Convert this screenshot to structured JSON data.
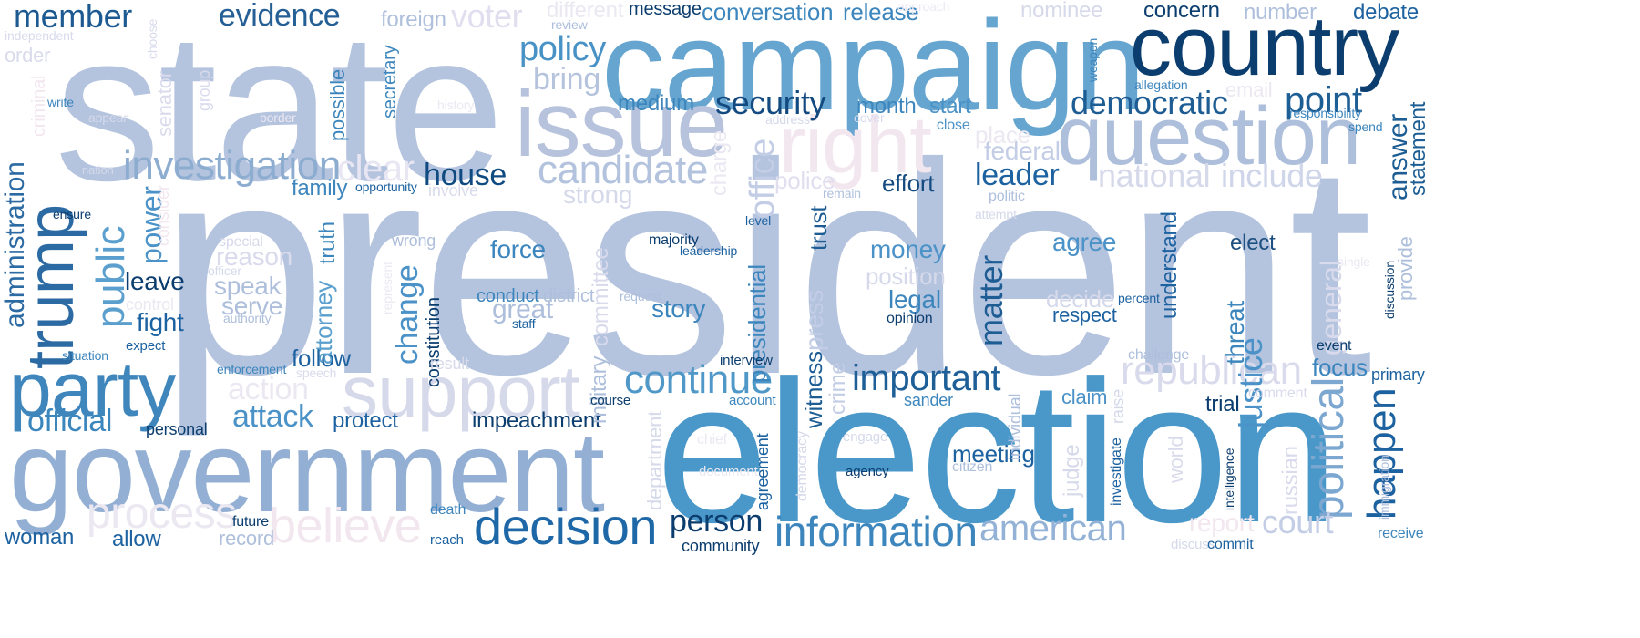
{
  "palette": {
    "light_blue": "#b4c3de",
    "mid_blue": "#5aa0cf",
    "bright_blue": "#3182bd",
    "dark_blue": "#1d5d92",
    "navy": "#08306b",
    "pale_lavender": "#d9d9ea",
    "pale_pink": "#f3e6ef",
    "background": "#ffffff"
  },
  "words": [
    {
      "text": "president",
      "color": "#b4c3de"
    },
    {
      "text": "election",
      "color": "#4a98c9"
    },
    {
      "text": "state",
      "color": "#b4c3de"
    },
    {
      "text": "campaign",
      "color": "#65a5d0"
    },
    {
      "text": "government",
      "color": "#93b0d4"
    },
    {
      "text": "country",
      "color": "#0b3d6e"
    },
    {
      "text": "question",
      "color": "#aebfdc"
    },
    {
      "text": "issue",
      "color": "#b7c3dd"
    },
    {
      "text": "support",
      "color": "#d6d9ea"
    },
    {
      "text": "party",
      "color": "#3f86bc"
    },
    {
      "text": "trump",
      "color": "#2c6aa3"
    },
    {
      "text": "right",
      "color": "#f2e6ef"
    },
    {
      "text": "decision",
      "color": "#1e68a8"
    },
    {
      "text": "information",
      "color": "#3c86bd"
    },
    {
      "text": "continue",
      "color": "#4f98c8"
    },
    {
      "text": "important",
      "color": "#1f5f98"
    },
    {
      "text": "investigation",
      "color": "#8cacd0"
    },
    {
      "text": "candidate",
      "color": "#b3c3de"
    },
    {
      "text": "republican",
      "color": "#d9dbec"
    },
    {
      "text": "american",
      "color": "#93b2d6"
    },
    {
      "text": "member",
      "color": "#1c5a91"
    },
    {
      "text": "evidence",
      "color": "#245f96"
    },
    {
      "text": "policy",
      "color": "#4992c6"
    },
    {
      "text": "security",
      "color": "#134a80"
    },
    {
      "text": "democratic",
      "color": "#1d5d94"
    },
    {
      "text": "point",
      "color": "#1d5e95"
    },
    {
      "text": "house",
      "color": "#0f4a80"
    },
    {
      "text": "official",
      "color": "#3a86bd"
    },
    {
      "text": "public",
      "color": "#5a9fcd"
    },
    {
      "text": "administration",
      "color": "#2c6aa3"
    },
    {
      "text": "political",
      "color": "#7ca7d0"
    },
    {
      "text": "happen",
      "color": "#1d62a0"
    },
    {
      "text": "justice",
      "color": "#4a92c7"
    },
    {
      "text": "answer",
      "color": "#1c5d93"
    },
    {
      "text": "statement",
      "color": "#1c5d93"
    },
    {
      "text": "believe",
      "color": "#f2e6ef"
    },
    {
      "text": "process",
      "color": "#ebe8f2"
    },
    {
      "text": "court",
      "color": "#c3cde6"
    },
    {
      "text": "person",
      "color": "#0b3d6e"
    },
    {
      "text": "national",
      "color": "#d5d9ea"
    },
    {
      "text": "include",
      "color": "#cfd6ea"
    },
    {
      "text": "leader",
      "color": "#1d62a0"
    },
    {
      "text": "bring",
      "color": "#b5c3dd"
    },
    {
      "text": "clear",
      "color": "#e8e6f2"
    },
    {
      "text": "voter",
      "color": "#e1dfef"
    },
    {
      "text": "attack",
      "color": "#4a92c7"
    },
    {
      "text": "matter",
      "color": "#1d5d94"
    },
    {
      "text": "office",
      "color": "#c3cde6"
    },
    {
      "text": "meeting",
      "color": "#1d62a0"
    },
    {
      "text": "money",
      "color": "#4a92c7"
    },
    {
      "text": "legal",
      "color": "#3c86bd"
    },
    {
      "text": "force",
      "color": "#3c86bd"
    },
    {
      "text": "story",
      "color": "#3c86bd"
    },
    {
      "text": "agree",
      "color": "#4a92c7"
    },
    {
      "text": "elect",
      "color": "#1d4f80"
    },
    {
      "text": "change",
      "color": "#4a92c7"
    },
    {
      "text": "protect",
      "color": "#1d62a0"
    },
    {
      "text": "impeachment",
      "color": "#0b3d6e"
    },
    {
      "text": "follow",
      "color": "#1d62a0"
    },
    {
      "text": "fight",
      "color": "#1d62a0"
    },
    {
      "text": "leave",
      "color": "#0b3d6e"
    },
    {
      "text": "speak",
      "color": "#aebfdc"
    },
    {
      "text": "serve",
      "color": "#aebfdc"
    },
    {
      "text": "reason",
      "color": "#d9dbec"
    },
    {
      "text": "power",
      "color": "#4a92c7"
    },
    {
      "text": "attorney",
      "color": "#5a9fcd"
    },
    {
      "text": "truth",
      "color": "#3c86bd"
    },
    {
      "text": "presidential",
      "color": "#3c86bd"
    },
    {
      "text": "witness",
      "color": "#1d5d94"
    },
    {
      "text": "trust",
      "color": "#1d5d94"
    },
    {
      "text": "press",
      "color": "#c3cde6"
    },
    {
      "text": "crime",
      "color": "#c3cde6"
    },
    {
      "text": "position",
      "color": "#d5d9ea"
    },
    {
      "text": "decide",
      "color": "#d5d9ea"
    },
    {
      "text": "understand",
      "color": "#1d62a0"
    },
    {
      "text": "threat",
      "color": "#3c86bd"
    },
    {
      "text": "general",
      "color": "#d9dbec"
    },
    {
      "text": "focus",
      "color": "#3c86bd"
    },
    {
      "text": "trial",
      "color": "#0b3d6e"
    },
    {
      "text": "claim",
      "color": "#4a92c7"
    },
    {
      "text": "respect",
      "color": "#1d62a0"
    },
    {
      "text": "effort",
      "color": "#134a80"
    },
    {
      "text": "federal",
      "color": "#c3cde6"
    },
    {
      "text": "police",
      "color": "#e1dfef"
    },
    {
      "text": "place",
      "color": "#ebe8f2"
    },
    {
      "text": "strong",
      "color": "#d5d9ea"
    },
    {
      "text": "family",
      "color": "#3c86bd"
    },
    {
      "text": "great",
      "color": "#aebfdc"
    },
    {
      "text": "conduct",
      "color": "#3c86bd"
    },
    {
      "text": "district",
      "color": "#aebfdc"
    },
    {
      "text": "committee",
      "color": "#d9dbec"
    },
    {
      "text": "military",
      "color": "#aebfdc"
    },
    {
      "text": "constitution",
      "color": "#0b3d6e"
    },
    {
      "text": "action",
      "color": "#ebe8f2"
    },
    {
      "text": "release",
      "color": "#3c86bd"
    },
    {
      "text": "conversation",
      "color": "#3c86bd"
    },
    {
      "text": "concern",
      "color": "#0b3d6e"
    },
    {
      "text": "number",
      "color": "#aebfdc"
    },
    {
      "text": "debate",
      "color": "#1d62a0"
    },
    {
      "text": "nominee",
      "color": "#d5d9ea"
    },
    {
      "text": "different",
      "color": "#ebe8f2"
    },
    {
      "text": "foreign",
      "color": "#aebfdc"
    },
    {
      "text": "message",
      "color": "#0b3d6e"
    },
    {
      "text": "month",
      "color": "#3c86bd"
    },
    {
      "text": "start",
      "color": "#4a92c7"
    },
    {
      "text": "medium",
      "color": "#3c86bd"
    },
    {
      "text": "close",
      "color": "#4a92c7"
    },
    {
      "text": "order",
      "color": "#d9dbec"
    },
    {
      "text": "independent",
      "color": "#d9dbec"
    },
    {
      "text": "possible",
      "color": "#3c86bd"
    },
    {
      "text": "secretary",
      "color": "#3c86bd"
    },
    {
      "text": "senator",
      "color": "#d9dbec"
    },
    {
      "text": "group",
      "color": "#d9dbec"
    },
    {
      "text": "write",
      "color": "#3c86bd"
    },
    {
      "text": "appear",
      "color": "#d5d9ea"
    },
    {
      "text": "criminal",
      "color": "#f2e6ef"
    },
    {
      "text": "choose",
      "color": "#d9dbec"
    },
    {
      "text": "nation",
      "color": "#d5d9ea"
    },
    {
      "text": "ensure",
      "color": "#0b3d6e"
    },
    {
      "text": "consider",
      "color": "#f2e6ef"
    },
    {
      "text": "special",
      "color": "#d5d9ea"
    },
    {
      "text": "officer",
      "color": "#d5d9ea"
    },
    {
      "text": "authority",
      "color": "#aebfdc"
    },
    {
      "text": "control",
      "color": "#ebe8f2"
    },
    {
      "text": "situation",
      "color": "#3c86bd"
    },
    {
      "text": "expect",
      "color": "#1d62a0"
    },
    {
      "text": "enforcement",
      "color": "#3c86bd"
    },
    {
      "text": "speech",
      "color": "#d9dbec"
    },
    {
      "text": "personal",
      "color": "#0b3d6e"
    },
    {
      "text": "opportunity",
      "color": "#1d62a0"
    },
    {
      "text": "involve",
      "color": "#d9dbec"
    },
    {
      "text": "wrong",
      "color": "#aebfdc"
    },
    {
      "text": "majority",
      "color": "#0b3d6e"
    },
    {
      "text": "leadership",
      "color": "#1d62a0"
    },
    {
      "text": "level",
      "color": "#1d62a0"
    },
    {
      "text": "request",
      "color": "#aebfdc"
    },
    {
      "text": "staff",
      "color": "#1d62a0"
    },
    {
      "text": "result",
      "color": "#d5d9ea"
    },
    {
      "text": "interview",
      "color": "#0b3d6e"
    },
    {
      "text": "account",
      "color": "#3c86bd"
    },
    {
      "text": "course",
      "color": "#0b3d6e"
    },
    {
      "text": "charge",
      "color": "#ebe8f2"
    },
    {
      "text": "address",
      "color": "#d5d9ea"
    },
    {
      "text": "cover",
      "color": "#d9dbec"
    },
    {
      "text": "remain",
      "color": "#aebfdc"
    },
    {
      "text": "politic",
      "color": "#aebfdc"
    },
    {
      "text": "attempt",
      "color": "#d5d9ea"
    },
    {
      "text": "opinion",
      "color": "#0b3d6e"
    },
    {
      "text": "percent",
      "color": "#1d62a0"
    },
    {
      "text": "sander",
      "color": "#3c86bd"
    },
    {
      "text": "individual",
      "color": "#aebfdc"
    },
    {
      "text": "raise",
      "color": "#d5d9ea"
    },
    {
      "text": "judge",
      "color": "#d5d9ea"
    },
    {
      "text": "investigate",
      "color": "#1d62a0"
    },
    {
      "text": "intelligence",
      "color": "#0b3d6e"
    },
    {
      "text": "world",
      "color": "#d9dbec"
    },
    {
      "text": "russian",
      "color": "#d9dbec"
    },
    {
      "text": "report",
      "color": "#f2e6ef"
    },
    {
      "text": "challenge",
      "color": "#aebfdc"
    },
    {
      "text": "comment",
      "color": "#d9dbec"
    },
    {
      "text": "primary",
      "color": "#1d62a0"
    },
    {
      "text": "event",
      "color": "#0b3d6e"
    },
    {
      "text": "immigration",
      "color": "#aebfdc"
    },
    {
      "text": "receive",
      "color": "#3c86bd"
    },
    {
      "text": "discuss",
      "color": "#d5d9ea"
    },
    {
      "text": "commit",
      "color": "#1d62a0"
    },
    {
      "text": "community",
      "color": "#0b3d6e"
    },
    {
      "text": "reach",
      "color": "#1d62a0"
    },
    {
      "text": "death",
      "color": "#3c86bd"
    },
    {
      "text": "future",
      "color": "#0b3d6e"
    },
    {
      "text": "record",
      "color": "#aebfdc"
    },
    {
      "text": "allow",
      "color": "#1d62a0"
    },
    {
      "text": "woman",
      "color": "#1d62a0"
    },
    {
      "text": "agreement",
      "color": "#1d62a0"
    },
    {
      "text": "democracy",
      "color": "#d5d9ea"
    },
    {
      "text": "chief",
      "color": "#ebe8f2"
    },
    {
      "text": "engage",
      "color": "#d5d9ea"
    },
    {
      "text": "agency",
      "color": "#0b3d6e"
    },
    {
      "text": "citizen",
      "color": "#aebfdc"
    },
    {
      "text": "document",
      "color": "#ebe8f2"
    },
    {
      "text": "department",
      "color": "#d5d9ea"
    },
    {
      "text": "email",
      "color": "#ebe8f2"
    },
    {
      "text": "allegation",
      "color": "#3c86bd"
    },
    {
      "text": "responsibility",
      "color": "#3c86bd"
    },
    {
      "text": "spend",
      "color": "#3c86bd"
    },
    {
      "text": "weapon",
      "color": "#3c86bd"
    },
    {
      "text": "provide",
      "color": "#aebfdc"
    },
    {
      "text": "discussion",
      "color": "#0b3d6e"
    },
    {
      "text": "single",
      "color": "#ebe8f2"
    },
    {
      "text": "review",
      "color": "#aebfdc"
    },
    {
      "text": "history",
      "color": "#ebe8f2"
    },
    {
      "text": "border",
      "color": "#ebe8f2"
    },
    {
      "text": "represent",
      "color": "#ebe8f2"
    },
    {
      "text": "approach",
      "color": "#ebe8f2"
    }
  ]
}
